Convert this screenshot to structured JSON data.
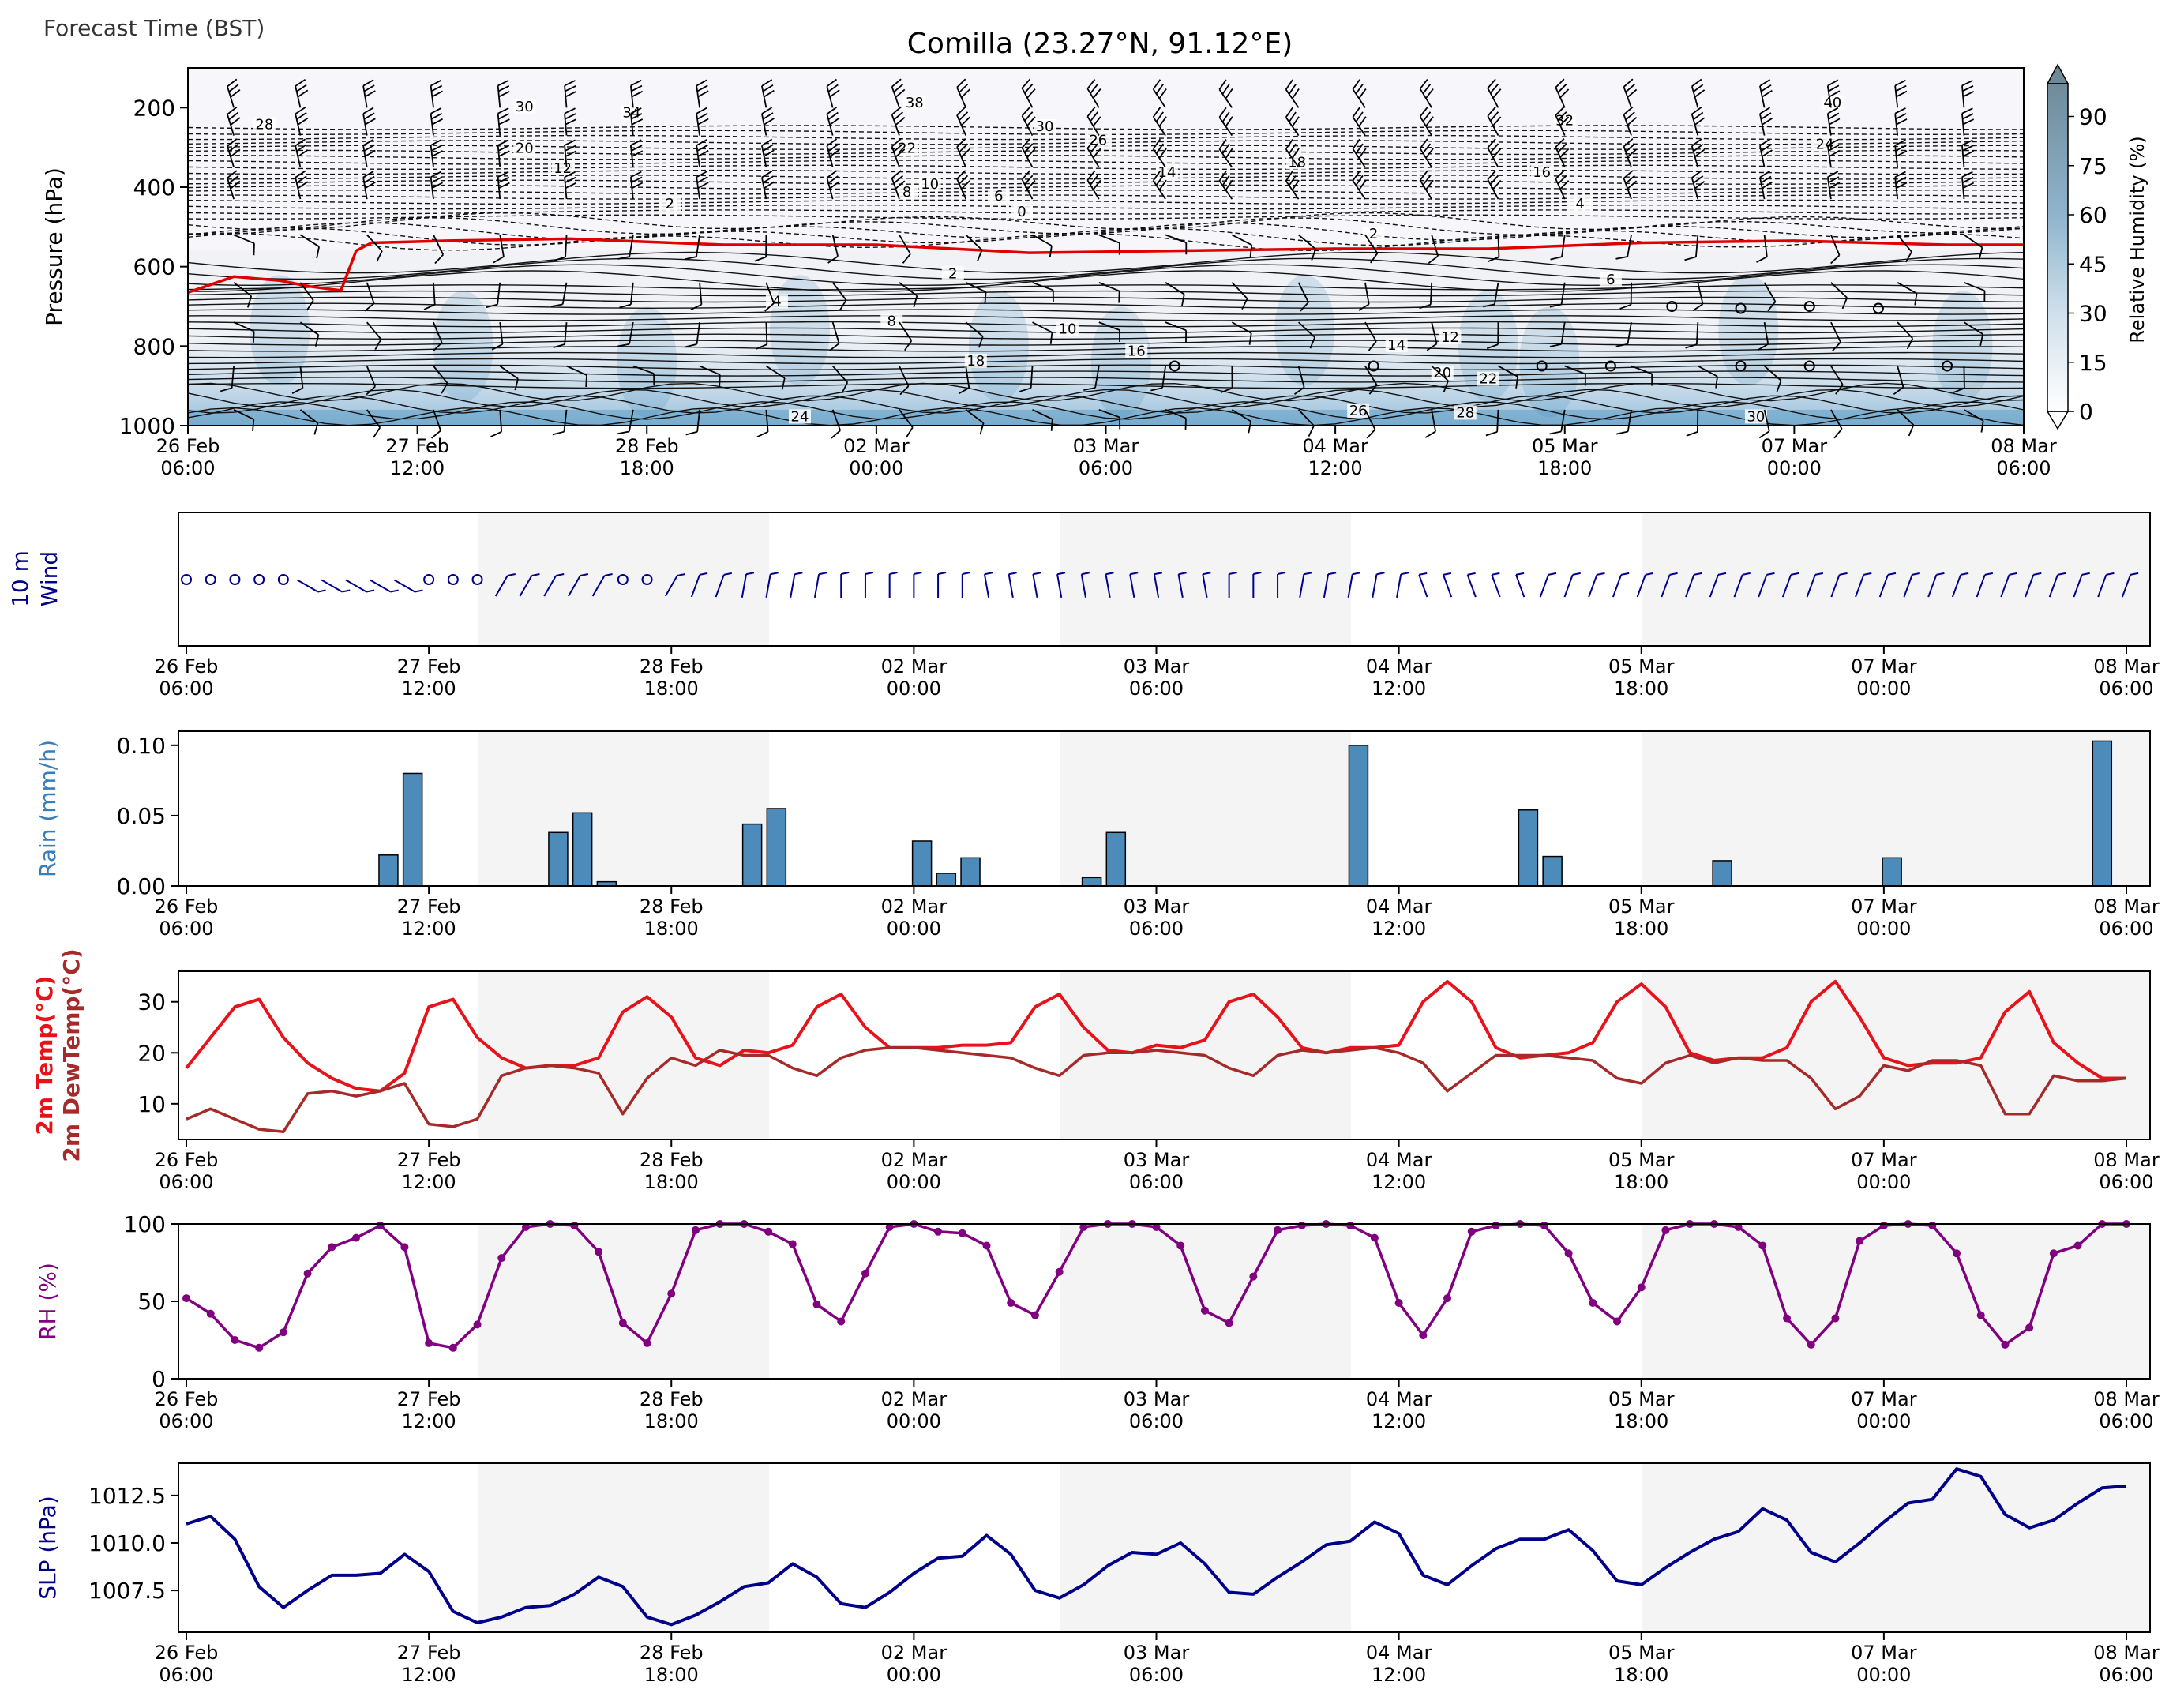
{
  "header": {
    "corner_label": "Forecast Time (BST)",
    "title": "Comilla (23.27°N, 91.12°E)"
  },
  "time_axis": {
    "tick_labels": [
      [
        "26 Feb",
        "06:00"
      ],
      [
        "27 Feb",
        "12:00"
      ],
      [
        "28 Feb",
        "18:00"
      ],
      [
        "02 Mar",
        "00:00"
      ],
      [
        "03 Mar",
        "06:00"
      ],
      [
        "04 Mar",
        "12:00"
      ],
      [
        "05 Mar",
        "18:00"
      ],
      [
        "07 Mar",
        "00:00"
      ],
      [
        "08 Mar",
        "06:00"
      ]
    ]
  },
  "colorbar": {
    "label": "Relative Humidity (%)",
    "ticks": [
      "0",
      "15",
      "30",
      "45",
      "60",
      "75",
      "90"
    ]
  },
  "colors": {
    "rh_fill": "#3a86b8",
    "temp": "#e8131a",
    "dewpoint": "#a52a2a",
    "rh_line": "#800080",
    "slp": "#00008b",
    "wind_10m": "#00008b",
    "rain_bar": "#4d8cba",
    "freezing_level": "#e00000",
    "night_band": "#f4f4f4"
  },
  "chart_data": [
    {
      "type": "heatmap",
      "name": "vertical cross-section",
      "ylabel": "Pressure (hPa)",
      "yticks": [
        200,
        400,
        600,
        800,
        1000
      ],
      "ylim": [
        1000,
        100
      ],
      "xlim_hours": [
        0,
        240
      ],
      "colorbar_range": [
        0,
        100
      ],
      "contour_labels": [
        {
          "t": 44,
          "p": 205,
          "label": "30"
        },
        {
          "t": 58,
          "p": 220,
          "label": "34"
        },
        {
          "t": 95,
          "p": 195,
          "label": "38"
        },
        {
          "t": 215,
          "p": 195,
          "label": "40"
        },
        {
          "t": 10,
          "p": 250,
          "label": "28"
        },
        {
          "t": 180,
          "p": 240,
          "label": "32"
        },
        {
          "t": 112,
          "p": 255,
          "label": "30"
        },
        {
          "t": 44,
          "p": 310,
          "label": "20"
        },
        {
          "t": 94,
          "p": 310,
          "label": "22"
        },
        {
          "t": 119,
          "p": 290,
          "label": "26"
        },
        {
          "t": 214,
          "p": 300,
          "label": "24"
        },
        {
          "t": 49,
          "p": 360,
          "label": "12"
        },
        {
          "t": 145,
          "p": 345,
          "label": "18"
        },
        {
          "t": 128,
          "p": 370,
          "label": "14"
        },
        {
          "t": 177,
          "p": 370,
          "label": "16"
        },
        {
          "t": 97,
          "p": 400,
          "label": "10"
        },
        {
          "t": 94,
          "p": 420,
          "label": "8"
        },
        {
          "t": 106,
          "p": 430,
          "label": "6"
        },
        {
          "t": 63,
          "p": 450,
          "label": "2"
        },
        {
          "t": 109,
          "p": 470,
          "label": "0"
        },
        {
          "t": 182,
          "p": 450,
          "label": "4"
        },
        {
          "t": 155,
          "p": 525,
          "label": "2"
        },
        {
          "t": 100,
          "p": 625,
          "label": "2"
        },
        {
          "t": 77,
          "p": 695,
          "label": "4"
        },
        {
          "t": 186,
          "p": 640,
          "label": "6"
        },
        {
          "t": 92,
          "p": 745,
          "label": "8"
        },
        {
          "t": 115,
          "p": 765,
          "label": "10"
        },
        {
          "t": 158,
          "p": 805,
          "label": "14"
        },
        {
          "t": 165,
          "p": 785,
          "label": "12"
        },
        {
          "t": 103,
          "p": 845,
          "label": "18"
        },
        {
          "t": 124,
          "p": 820,
          "label": "16"
        },
        {
          "t": 164,
          "p": 875,
          "label": "20"
        },
        {
          "t": 170,
          "p": 890,
          "label": "22"
        },
        {
          "t": 80,
          "p": 985,
          "label": "24"
        },
        {
          "t": 153,
          "p": 970,
          "label": "26"
        },
        {
          "t": 167,
          "p": 975,
          "label": "28"
        },
        {
          "t": 205,
          "p": 985,
          "label": "30"
        }
      ],
      "freezing_level": {
        "t": [
          0,
          6,
          12,
          16,
          20,
          22,
          24,
          34,
          50,
          70,
          90,
          110,
          130,
          150,
          170,
          190,
          210,
          230,
          240
        ],
        "p": [
          665,
          625,
          635,
          650,
          660,
          560,
          540,
          535,
          530,
          545,
          545,
          565,
          560,
          555,
          555,
          540,
          535,
          545,
          545
        ]
      },
      "calm_markers": [
        {
          "t": 194,
          "p": 700
        },
        {
          "t": 203,
          "p": 705
        },
        {
          "t": 212,
          "p": 700
        },
        {
          "t": 221,
          "p": 705
        },
        {
          "t": 129,
          "p": 850
        },
        {
          "t": 155,
          "p": 850
        },
        {
          "t": 177,
          "p": 850
        },
        {
          "t": 186,
          "p": 850
        },
        {
          "t": 203,
          "p": 850
        },
        {
          "t": 212,
          "p": 850
        },
        {
          "t": 230,
          "p": 850
        }
      ]
    },
    {
      "type": "scatter",
      "name": "10 m wind",
      "ylabel_lines": [
        "10 m",
        "Wind"
      ],
      "x_hours": [
        0,
        3,
        6,
        9,
        12,
        15,
        18,
        21,
        24,
        27,
        30,
        33,
        36,
        39,
        42,
        45,
        48,
        51,
        54,
        57,
        60,
        63,
        66,
        69,
        72,
        75,
        78,
        81,
        84,
        87,
        90,
        93,
        96,
        99,
        102,
        105,
        108,
        111,
        114,
        117,
        120,
        123,
        126,
        129,
        132,
        135,
        138,
        141,
        144,
        147,
        150,
        153,
        156,
        159,
        162,
        165,
        168,
        171,
        174,
        177,
        180,
        183,
        186,
        189,
        192,
        195,
        198,
        201,
        204,
        207,
        210,
        213,
        216,
        219,
        222,
        225,
        228,
        231,
        234,
        237,
        240
      ],
      "calm": [
        1,
        1,
        1,
        1,
        1,
        0,
        0,
        0,
        0,
        0,
        1,
        1,
        1,
        0,
        0,
        0,
        0,
        0,
        1,
        1,
        0,
        0,
        0,
        0,
        0,
        0,
        0,
        0,
        0,
        0,
        0,
        0,
        0,
        0,
        0,
        0,
        0,
        0,
        0,
        0,
        0,
        0,
        0,
        0,
        0,
        0,
        0,
        0,
        0,
        0,
        0,
        0,
        0,
        0,
        0,
        0,
        0,
        0,
        0,
        0,
        0,
        0,
        0,
        0,
        0,
        0,
        0,
        0,
        0,
        0,
        0,
        0,
        0,
        0,
        0,
        0,
        0,
        0,
        0,
        0,
        0
      ],
      "direction_deg": [
        0,
        0,
        0,
        0,
        0,
        300,
        300,
        300,
        300,
        300,
        0,
        0,
        0,
        210,
        210,
        210,
        210,
        210,
        0,
        0,
        210,
        200,
        200,
        190,
        190,
        190,
        190,
        180,
        180,
        180,
        180,
        180,
        180,
        170,
        170,
        170,
        170,
        170,
        170,
        170,
        170,
        170,
        170,
        180,
        180,
        180,
        190,
        190,
        190,
        190,
        190,
        160,
        160,
        160,
        160,
        160,
        200,
        200,
        200,
        200,
        200,
        200,
        200,
        200,
        200,
        200,
        200,
        200,
        200,
        200,
        200,
        200,
        200,
        200,
        200,
        200,
        200,
        200,
        200,
        200,
        200
      ]
    },
    {
      "type": "bar",
      "name": "rain",
      "ylabel": "Rain (mm/h)",
      "yticks": [
        "0.00",
        "0.05",
        "0.10"
      ],
      "ylim": [
        0,
        0.11
      ],
      "x_hours": [
        25,
        28,
        46,
        49,
        52,
        70,
        73,
        91,
        94,
        97,
        112,
        115,
        145,
        166,
        169,
        190,
        211,
        237
      ],
      "values": [
        0.022,
        0.08,
        0.038,
        0.052,
        0.003,
        0.044,
        0.055,
        0.032,
        0.009,
        0.02,
        0.006,
        0.038,
        0.1,
        0.054,
        0.021,
        0.018,
        0.02,
        0.103
      ]
    },
    {
      "type": "line",
      "name": "2m temperature and dewpoint",
      "ylabel_lines": [
        "2m Temp(°C)",
        "2m DewTemp(°C)"
      ],
      "yticks": [
        10,
        20,
        30
      ],
      "ylim": [
        3,
        36
      ],
      "x_hours": [
        0,
        3,
        6,
        9,
        12,
        15,
        18,
        21,
        24,
        27,
        30,
        33,
        36,
        39,
        42,
        45,
        48,
        51,
        54,
        57,
        60,
        63,
        66,
        69,
        72,
        75,
        78,
        81,
        84,
        87,
        90,
        93,
        96,
        99,
        102,
        105,
        108,
        111,
        114,
        117,
        120,
        123,
        126,
        129,
        132,
        135,
        138,
        141,
        144,
        147,
        150,
        153,
        156,
        159,
        162,
        165,
        168,
        171,
        174,
        177,
        180,
        183,
        186,
        189,
        192,
        195,
        198,
        201,
        204,
        207,
        210,
        213,
        216,
        219,
        222,
        225,
        228,
        231,
        234,
        237,
        240
      ],
      "series": [
        {
          "name": "2m Temp(°C)",
          "values": [
            17,
            23,
            29,
            30.5,
            23,
            18,
            15,
            13,
            12.5,
            16,
            29,
            30.5,
            23,
            19,
            17,
            17.5,
            17.5,
            19,
            28,
            31,
            27,
            19,
            17.5,
            20.5,
            20,
            21.5,
            29,
            31.5,
            25,
            21,
            21,
            21,
            21.5,
            21.5,
            22,
            29,
            31.5,
            25,
            20.5,
            20,
            21.5,
            21,
            22.5,
            30,
            31.5,
            27,
            21,
            20,
            21,
            21,
            21.5,
            30,
            34,
            30,
            21,
            19,
            19.5,
            20,
            22,
            30,
            33.5,
            29,
            20,
            18.5,
            19,
            19,
            21,
            30,
            34,
            27,
            19,
            17.5,
            18,
            18,
            19,
            28,
            32,
            22,
            18,
            15,
            15
          ]
        },
        {
          "name": "2m DewTemp(°C)",
          "values": [
            7,
            9,
            7,
            5,
            4.5,
            12,
            12.5,
            11.5,
            12.5,
            14,
            6,
            5.5,
            7,
            15.5,
            17,
            17.5,
            17,
            16,
            8,
            15,
            19,
            17.5,
            20.5,
            19.5,
            19.5,
            17,
            15.5,
            19,
            20.5,
            21,
            21,
            20.5,
            20,
            19.5,
            19,
            17,
            15.5,
            19.5,
            20,
            20,
            20.5,
            20,
            19.5,
            17,
            15.5,
            19.5,
            20.5,
            20,
            20.5,
            21,
            20,
            18,
            12.5,
            16,
            19.5,
            19.5,
            19.5,
            19,
            18.5,
            15,
            14,
            18,
            19.5,
            18,
            19,
            18.5,
            18.5,
            15,
            9,
            11.5,
            17.5,
            16.5,
            18.5,
            18.5,
            17.5,
            8,
            8,
            15.5,
            14.5,
            14.5,
            15
          ]
        }
      ]
    },
    {
      "type": "line",
      "name": "relative humidity",
      "ylabel": "RH (%)",
      "yticks": [
        0,
        50,
        100
      ],
      "ylim": [
        0,
        100
      ],
      "x_hours": [
        0,
        3,
        6,
        9,
        12,
        15,
        18,
        21,
        24,
        27,
        30,
        33,
        36,
        39,
        42,
        45,
        48,
        51,
        54,
        57,
        60,
        63,
        66,
        69,
        72,
        75,
        78,
        81,
        84,
        87,
        90,
        93,
        96,
        99,
        102,
        105,
        108,
        111,
        114,
        117,
        120,
        123,
        126,
        129,
        132,
        135,
        138,
        141,
        144,
        147,
        150,
        153,
        156,
        159,
        162,
        165,
        168,
        171,
        174,
        177,
        180,
        183,
        186,
        189,
        192,
        195,
        198,
        201,
        204,
        207,
        210,
        213,
        216,
        219,
        222,
        225,
        228,
        231,
        234,
        237,
        240
      ],
      "values": [
        52,
        42,
        25,
        20,
        30,
        68,
        85,
        91,
        99,
        85,
        23,
        20,
        35,
        78,
        98,
        100,
        99,
        82,
        36,
        23,
        55,
        96,
        100,
        100,
        95,
        87,
        48,
        37,
        68,
        98,
        100,
        95,
        94,
        86,
        49,
        41,
        69,
        98,
        100,
        100,
        98,
        86,
        44,
        36,
        66,
        96,
        99,
        100,
        99,
        91,
        49,
        28,
        52,
        95,
        99,
        100,
        99,
        81,
        49,
        37,
        59,
        96,
        100,
        100,
        98,
        86,
        39,
        22,
        39,
        89,
        99,
        100,
        99,
        81,
        41,
        22,
        33,
        81,
        86,
        100,
        100
      ]
    },
    {
      "type": "line",
      "name": "sea level pressure",
      "ylabel": "SLP (hPa)",
      "yticks": [
        "1007.5",
        "1010.0",
        "1012.5"
      ],
      "ylim": [
        1005.3,
        1014.2
      ],
      "x_hours": [
        0,
        3,
        6,
        9,
        12,
        15,
        18,
        21,
        24,
        27,
        30,
        33,
        36,
        39,
        42,
        45,
        48,
        51,
        54,
        57,
        60,
        63,
        66,
        69,
        72,
        75,
        78,
        81,
        84,
        87,
        90,
        93,
        96,
        99,
        102,
        105,
        108,
        111,
        114,
        117,
        120,
        123,
        126,
        129,
        132,
        135,
        138,
        141,
        144,
        147,
        150,
        153,
        156,
        159,
        162,
        165,
        168,
        171,
        174,
        177,
        180,
        183,
        186,
        189,
        192,
        195,
        198,
        201,
        204,
        207,
        210,
        213,
        216,
        219,
        222,
        225,
        228,
        231,
        234,
        237,
        240
      ],
      "values": [
        1011,
        1011.4,
        1010.2,
        1007.7,
        1006.6,
        1007.5,
        1008.3,
        1008.3,
        1008.4,
        1009.4,
        1008.5,
        1006.4,
        1005.8,
        1006.1,
        1006.6,
        1006.7,
        1007.3,
        1008.2,
        1007.7,
        1006.1,
        1005.7,
        1006.2,
        1006.9,
        1007.7,
        1007.9,
        1008.9,
        1008.2,
        1006.8,
        1006.6,
        1007.4,
        1008.4,
        1009.2,
        1009.3,
        1010.4,
        1009.4,
        1007.5,
        1007.1,
        1007.8,
        1008.8,
        1009.5,
        1009.4,
        1010,
        1008.9,
        1007.4,
        1007.3,
        1008.2,
        1009,
        1009.9,
        1010.1,
        1011.1,
        1010.5,
        1008.3,
        1007.8,
        1008.8,
        1009.7,
        1010.2,
        1010.2,
        1010.7,
        1009.6,
        1008,
        1007.8,
        1008.7,
        1009.5,
        1010.2,
        1010.6,
        1011.8,
        1011.2,
        1009.5,
        1009,
        1010,
        1011.1,
        1012.1,
        1012.3,
        1013.9,
        1013.5,
        1011.5,
        1010.8,
        1011.2,
        1012.1,
        1012.9,
        1013
      ]
    }
  ]
}
